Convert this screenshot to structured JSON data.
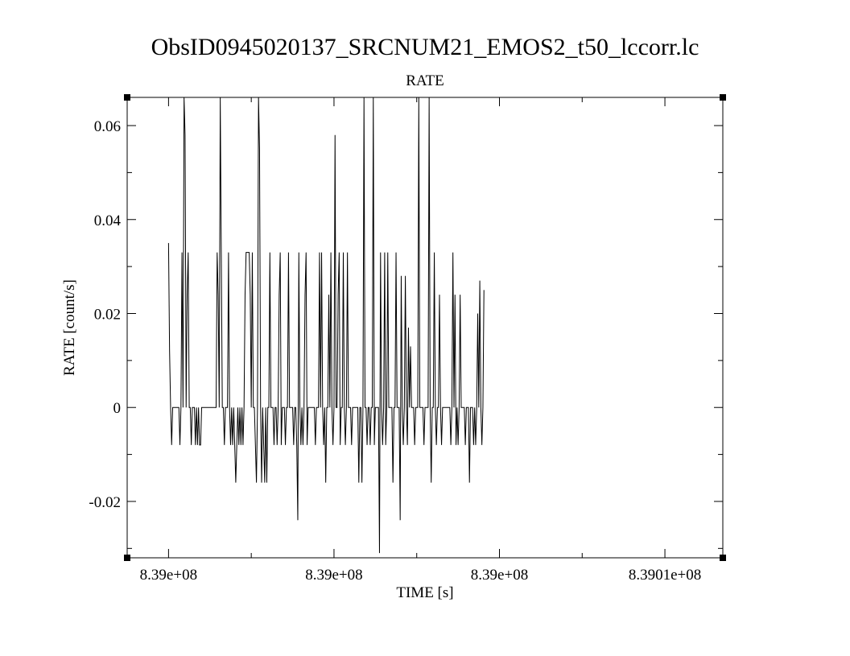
{
  "chart_data": {
    "type": "line",
    "title": "ObsID0945020137_SRCNUM21_EMOS2_t50_lccorr.lc",
    "subtitle": "RATE",
    "xlabel": "TIME [s]",
    "ylabel": "RATE [count/s]",
    "xlim": [
      838990000,
      839018800
    ],
    "ylim": [
      -0.032,
      0.066
    ],
    "x_ticks": [
      {
        "value": 838992000,
        "label": "8.39e+08"
      },
      {
        "value": 839000000,
        "label": "8.39e+08"
      },
      {
        "value": 839008000,
        "label": "8.39e+08"
      },
      {
        "value": 839016000,
        "label": "8.3901e+08"
      }
    ],
    "y_ticks": [
      {
        "value": -0.02,
        "label": "-0.02"
      },
      {
        "value": 0,
        "label": "0"
      },
      {
        "value": 0.02,
        "label": "0.02"
      },
      {
        "value": 0.04,
        "label": "0.04"
      },
      {
        "value": 0.06,
        "label": "0.06"
      }
    ],
    "grid": false,
    "series": [
      {
        "x_start": 838992000,
        "x_step": 50,
        "values": [
          0.035,
          0.012,
          0.0,
          -0.008,
          0.0,
          0.0,
          0.0,
          0.0,
          0.0,
          0.0,
          0.0,
          -0.008,
          0.0,
          0.033,
          0.0,
          0.066,
          0.058,
          0.0,
          0.024,
          0.033,
          0.0,
          0.0,
          -0.008,
          0.0,
          0.0,
          0.0,
          -0.008,
          0.0,
          -0.008,
          0.0,
          -0.008,
          -0.008,
          0.0,
          0.0,
          0.0,
          0.0,
          0.0,
          0.0,
          0.0,
          0.0,
          0.0,
          0.0,
          0.0,
          0.0,
          0.0,
          0.0,
          0.0,
          0.033,
          0.024,
          0.0,
          0.066,
          0.033,
          0.0,
          0.0,
          -0.008,
          0.0,
          0.0,
          0.0,
          0.033,
          0.0,
          -0.008,
          0.0,
          -0.008,
          0.0,
          -0.008,
          -0.016,
          -0.008,
          0.0,
          -0.008,
          0.0,
          -0.008,
          0.0,
          -0.008,
          0.0,
          0.024,
          0.033,
          0.033,
          0.033,
          0.033,
          0.024,
          0.0,
          0.033,
          0.0,
          0.0,
          -0.008,
          -0.016,
          0.0,
          0.066,
          0.055,
          0.0,
          -0.016,
          0.0,
          -0.008,
          -0.016,
          0.0,
          -0.016,
          0.0,
          0.0,
          0.033,
          0.0,
          0.0,
          0.0,
          -0.008,
          0.0,
          0.0,
          -0.008,
          0.0,
          0.024,
          0.033,
          -0.008,
          0.0,
          0.0,
          0.0,
          -0.008,
          0.0,
          0.0,
          0.033,
          0.0,
          0.0,
          0.0,
          0.0,
          -0.008,
          0.0,
          0.0,
          -0.008,
          -0.024,
          0.033,
          0.0,
          -0.008,
          0.0,
          -0.008,
          0.0,
          0.024,
          0.033,
          -0.008,
          0.0,
          0.0,
          0.0,
          0.0,
          0.0,
          0.0,
          0.0,
          -0.008,
          0.0,
          0.0,
          0.0,
          0.033,
          0.0,
          0.033,
          0.0,
          -0.008,
          0.0,
          -0.016,
          0.0,
          0.0,
          0.024,
          0.0,
          0.033,
          0.0,
          -0.008,
          0.0,
          0.058,
          0.0,
          0.0,
          0.024,
          0.033,
          -0.008,
          0.0,
          0.0,
          0.033,
          0.0,
          -0.008,
          0.0,
          0.033,
          0.0,
          0.0,
          0.0,
          -0.008,
          0.0,
          0.0,
          0.0,
          0.0,
          0.0,
          0.0,
          -0.016,
          0.0,
          0.0,
          -0.016,
          0.0,
          0.066,
          0.0,
          0.0,
          -0.008,
          0.0,
          0.0,
          -0.008,
          0.0,
          0.0,
          0.066,
          -0.008,
          0.0,
          0.0,
          0.0,
          0.0,
          -0.031,
          0.033,
          0.0,
          -0.008,
          0.0,
          0.033,
          -0.008,
          0.0,
          0.033,
          0.0,
          0.0,
          0.0,
          0.0,
          -0.016,
          0.0,
          0.0,
          0.033,
          0.0,
          0.0,
          0.0,
          -0.024,
          0.028,
          0.0,
          -0.008,
          0.0,
          0.028,
          0.0,
          -0.008,
          0.017,
          0.0,
          0.013,
          0.0,
          0.0,
          0.0,
          -0.008,
          0.0,
          0.0,
          0.0,
          0.066,
          0.0,
          0.0,
          0.0,
          0.0,
          -0.008,
          0.0,
          0.0,
          0.0,
          0.0,
          0.066,
          0.0,
          -0.016,
          0.0,
          0.0,
          0.033,
          0.0,
          -0.008,
          0.0,
          0.0,
          0.024,
          0.0,
          -0.008,
          0.0,
          0.0,
          0.0,
          0.0,
          0.0,
          0.0,
          0.0,
          0.0,
          -0.008,
          0.0,
          0.033,
          0.0,
          0.024,
          -0.008,
          0.0,
          -0.008,
          0.0,
          0.024,
          0.0,
          0.0,
          0.0,
          0.0,
          -0.008,
          0.0,
          0.0,
          0.0,
          -0.016,
          0.0,
          0.0,
          0.0,
          -0.008,
          0.0,
          -0.008,
          0.0,
          0.02,
          0.0,
          0.027,
          0.0,
          -0.008,
          0.0,
          0.025
        ]
      }
    ]
  }
}
